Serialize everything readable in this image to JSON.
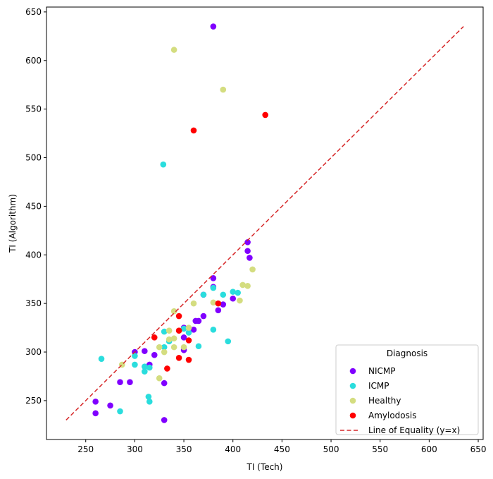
{
  "chart_data": {
    "type": "scatter",
    "xlabel": "TI (Tech)",
    "ylabel": "TI (Algorithm)",
    "xlim": [
      210,
      655
    ],
    "ylim": [
      210,
      655
    ],
    "xticks": [
      250,
      300,
      350,
      400,
      450,
      500,
      550,
      600,
      650
    ],
    "yticks": [
      250,
      300,
      350,
      400,
      450,
      500,
      550,
      600,
      650
    ],
    "grid": false,
    "legend": {
      "title": "Diagnosis",
      "placement": "bottom-right"
    },
    "series": [
      {
        "name": "NICMP",
        "color": "#8000ff",
        "points": [
          [
            380,
            635
          ],
          [
            415,
            413
          ],
          [
            415,
            404
          ],
          [
            417,
            397
          ],
          [
            380,
            376
          ],
          [
            380,
            367
          ],
          [
            370,
            359
          ],
          [
            400,
            355
          ],
          [
            390,
            349
          ],
          [
            385,
            343
          ],
          [
            370,
            337
          ],
          [
            365,
            332
          ],
          [
            362,
            332
          ],
          [
            360,
            323
          ],
          [
            350,
            325
          ],
          [
            350,
            315
          ],
          [
            350,
            302
          ],
          [
            310,
            301
          ],
          [
            300,
            300
          ],
          [
            320,
            297
          ],
          [
            315,
            287
          ],
          [
            285,
            269
          ],
          [
            295,
            269
          ],
          [
            330,
            268
          ],
          [
            260,
            249
          ],
          [
            275,
            245
          ],
          [
            260,
            237
          ],
          [
            330,
            230
          ]
        ]
      },
      {
        "name": "ICMP",
        "color": "#2adddd",
        "points": [
          [
            329,
            493
          ],
          [
            380,
            366
          ],
          [
            370,
            359
          ],
          [
            390,
            359
          ],
          [
            400,
            362
          ],
          [
            405,
            361
          ],
          [
            380,
            323
          ],
          [
            395,
            311
          ],
          [
            365,
            306
          ],
          [
            330,
            321
          ],
          [
            335,
            311
          ],
          [
            330,
            305
          ],
          [
            350,
            324
          ],
          [
            355,
            320
          ],
          [
            300,
            296
          ],
          [
            300,
            287
          ],
          [
            310,
            285
          ],
          [
            315,
            284
          ],
          [
            310,
            280
          ],
          [
            266,
            293
          ],
          [
            314,
            254
          ],
          [
            315,
            249
          ],
          [
            285,
            239
          ]
        ]
      },
      {
        "name": "Healthy",
        "color": "#d4dd80",
        "points": [
          [
            340,
            611
          ],
          [
            390,
            570
          ],
          [
            420,
            385
          ],
          [
            410,
            369
          ],
          [
            415,
            368
          ],
          [
            407,
            353
          ],
          [
            380,
            351
          ],
          [
            360,
            350
          ],
          [
            340,
            342
          ],
          [
            335,
            322
          ],
          [
            355,
            325
          ],
          [
            340,
            314
          ],
          [
            335,
            313
          ],
          [
            325,
            305
          ],
          [
            340,
            305
          ],
          [
            350,
            305
          ],
          [
            330,
            300
          ],
          [
            287,
            287
          ],
          [
            325,
            273
          ]
        ]
      },
      {
        "name": "Amylodosis",
        "color": "#ff0000",
        "points": [
          [
            433,
            544
          ],
          [
            360,
            528
          ],
          [
            385,
            350
          ],
          [
            345,
            337
          ],
          [
            345,
            322
          ],
          [
            355,
            312
          ],
          [
            320,
            315
          ],
          [
            333,
            283
          ],
          [
            345,
            294
          ],
          [
            355,
            292
          ]
        ]
      }
    ],
    "reference_line": {
      "name": "Line of Equality (y=x)",
      "color": "#d62728",
      "style": "dashed",
      "x": [
        230,
        635
      ],
      "y": [
        230,
        635
      ]
    }
  }
}
